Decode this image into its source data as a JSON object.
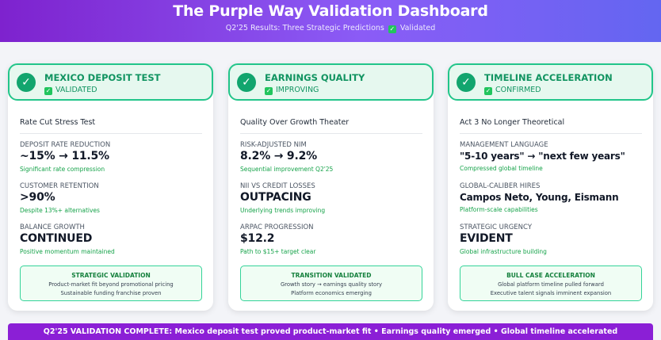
{
  "header": {
    "title": "The Purple Way Validation Dashboard",
    "subtitle_prefix": "Q2'25 Results: Three Strategic Predictions",
    "check_glyph": "✓",
    "subtitle_suffix": "Validated"
  },
  "cards": [
    {
      "banner_title": "MEXICO DEPOSIT TEST",
      "banner_status": "VALIDATED",
      "card_title": "Rate Cut Stress Test",
      "metrics": [
        {
          "label": "DEPOSIT RATE REDUCTION",
          "value": "~15% → 11.5%",
          "note": "Significant rate compression"
        },
        {
          "label": "CUSTOMER RETENTION",
          "value": ">90%",
          "note": "Despite 13%+ alternatives"
        },
        {
          "label": "BALANCE GROWTH",
          "value": "CONTINUED",
          "note": "Positive momentum maintained"
        }
      ],
      "summary": {
        "title": "STRATEGIC VALIDATION",
        "line1": "Product-market fit beyond promotional pricing",
        "line2": "Sustainable funding franchise proven"
      }
    },
    {
      "banner_title": "EARNINGS QUALITY",
      "banner_status": "IMPROVING",
      "card_title": "Quality Over Growth Theater",
      "metrics": [
        {
          "label": "RISK-ADJUSTED NIM",
          "value": "8.2% → 9.2%",
          "note": "Sequential improvement Q2'25"
        },
        {
          "label": "NII VS CREDIT LOSSES",
          "value": "OUTPACING",
          "note": "Underlying trends improving"
        },
        {
          "label": "ARPAC PROGRESSION",
          "value": "$12.2",
          "note": "Path to $15+ target clear"
        }
      ],
      "summary": {
        "title": "TRANSITION VALIDATED",
        "line1": "Growth story → earnings quality story",
        "line2": "Platform economics emerging"
      }
    },
    {
      "banner_title": "TIMELINE ACCELERATION",
      "banner_status": "CONFIRMED",
      "card_title": "Act 3 No Longer Theoretical",
      "metrics": [
        {
          "label": "MANAGEMENT LANGUAGE",
          "value": "\"5-10 years\" → \"next few years\"",
          "note": "Compressed global timeline"
        },
        {
          "label": "GLOBAL-CALIBER HIRES",
          "value": "Campos Neto, Young, Eismann",
          "note": "Platform-scale capabilities"
        },
        {
          "label": "STRATEGIC URGENCY",
          "value": "EVIDENT",
          "note": "Global infrastructure building"
        }
      ],
      "summary": {
        "title": "BULL CASE ACCELERATION",
        "line1": "Global platform timeline pulled forward",
        "line2": "Executive talent signals imminent expansion"
      }
    }
  ],
  "footer": {
    "text": "Q2'25 VALIDATION COMPLETE: Mexico deposit test proved product-market fit • Earnings quality emerged • Global timeline accelerated"
  },
  "icons": {
    "circle_check": "✓",
    "square_check": "✓"
  },
  "colors": {
    "header_start": "#7e22ce",
    "header_end": "#6366f1",
    "accent_green": "#119461",
    "footer_bg": "#8b1fd6"
  }
}
